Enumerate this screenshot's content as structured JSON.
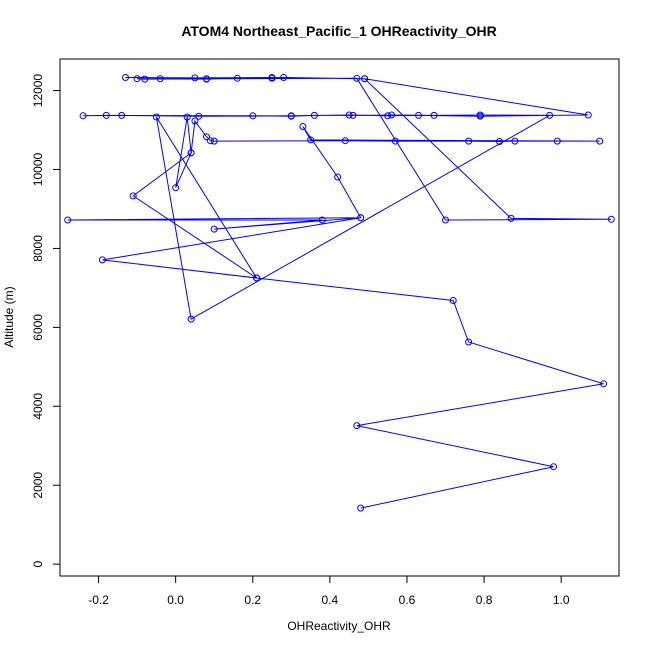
{
  "chart_data": {
    "type": "line",
    "title": "ATOM4 Northeast_Pacific_1 OHReactivity_OHR",
    "xlabel": "OHReactivity_OHR",
    "ylabel": "Altitude (m)",
    "xlim": [
      -0.3,
      1.15
    ],
    "ylim": [
      -300,
      12800
    ],
    "xticks": [
      -0.2,
      0.0,
      0.2,
      0.4,
      0.6,
      0.8,
      1.0
    ],
    "xtick_labels": [
      "-0.2",
      "0.0",
      "0.2",
      "0.4",
      "0.6",
      "0.8",
      "1.0"
    ],
    "yticks": [
      0,
      2000,
      4000,
      6000,
      8000,
      10000,
      12000
    ],
    "ytick_labels": [
      "0",
      "2000",
      "4000",
      "6000",
      "8000",
      "10000",
      "12000"
    ],
    "grid": false,
    "legend": "none",
    "markers": "open-circle",
    "series": [
      {
        "color": "#0000ff",
        "x": [
          0.48,
          0.98,
          0.47,
          1.11,
          0.76,
          0.72,
          0.21,
          -0.19,
          0.48,
          -0.28,
          0.38,
          0.1,
          0.48,
          0.42,
          0.33,
          0.35,
          1.1,
          0.99,
          0.88,
          0.84,
          0.76,
          0.57,
          0.44,
          0.1,
          0.09,
          0.08,
          0.05,
          0.04,
          0.03,
          0.0,
          0.04,
          -0.11,
          0.21,
          -0.05,
          0.04,
          0.97,
          0.79,
          0.67,
          0.56,
          0.46,
          0.36,
          0.3,
          0.2,
          -0.18,
          -0.24,
          -0.14,
          0.06,
          0.3,
          0.45,
          0.55,
          0.63,
          0.79,
          1.07,
          0.49,
          0.28,
          0.25,
          0.16,
          0.08,
          -0.04,
          -0.1,
          -0.08,
          0.08,
          0.47,
          0.7,
          1.13,
          0.87,
          0.49,
          0.25,
          0.05,
          -0.13
        ],
        "y": [
          1420,
          2470,
          3510,
          4570,
          5630,
          6680,
          7250,
          7710,
          8780,
          8720,
          8720,
          8490,
          8780,
          9810,
          11090,
          10750,
          10720,
          10720,
          10720,
          10710,
          10720,
          10720,
          10730,
          10720,
          10730,
          10830,
          11230,
          10420,
          11330,
          9540,
          10420,
          9330,
          7250,
          11330,
          6210,
          11370,
          11380,
          11370,
          11380,
          11370,
          11370,
          11350,
          11360,
          11370,
          11360,
          11370,
          11350,
          11360,
          11380,
          11360,
          11370,
          11350,
          11380,
          12300,
          12330,
          12310,
          12310,
          12290,
          12300,
          12300,
          12290,
          12300,
          12310,
          8720,
          8740,
          8760,
          12300,
          12330,
          12320,
          12330
        ]
      }
    ]
  }
}
